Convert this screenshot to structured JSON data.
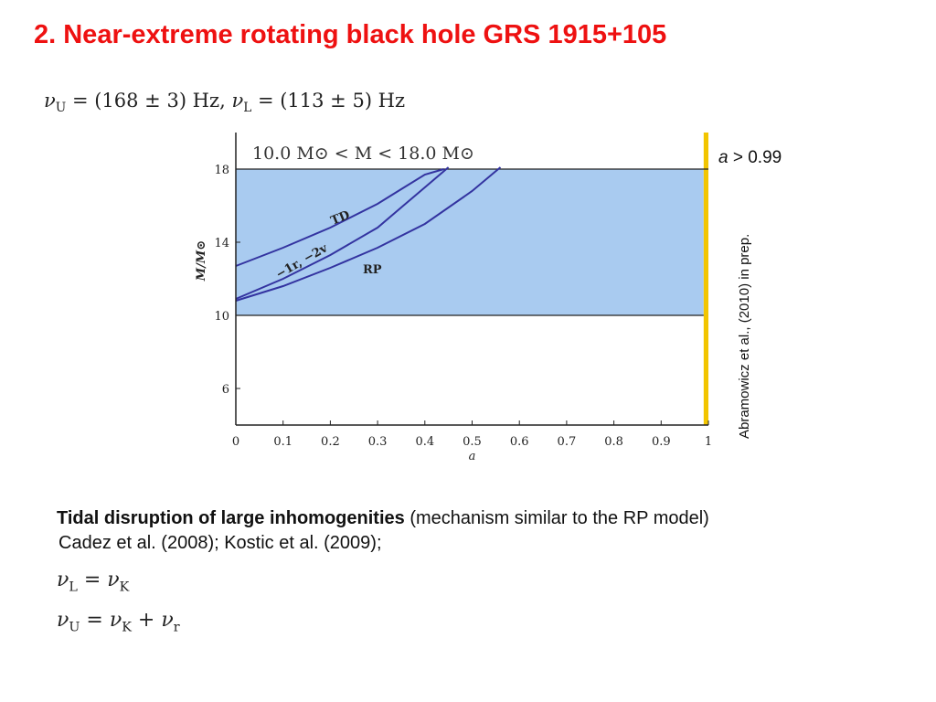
{
  "slide": {
    "title": "2. Near-extreme rotating black hole GRS 1915+105",
    "formula_top": {
      "nu_u_value": "(168 ± 3) Hz,",
      "nu_l_value": "(113 ± 5) Hz"
    },
    "condition": {
      "symbol": "a",
      "rest": " > 0.99"
    },
    "side_reference": "Abramowicz et al., (2010) in prep.",
    "text": {
      "bold": "Tidal disruption of large inhomogenities",
      "normal": " (mechanism similar to the RP model)",
      "refs": "Cadez et al. (2008);  Kostic et al. (2009);"
    },
    "formulas_bottom": {
      "l_rhs_sub": "K",
      "u_rhs_sub1": "K",
      "u_rhs_sub2": "r"
    }
  },
  "colors": {
    "title": "#ee1111",
    "band": "#a9cbf0",
    "yellow_strip": "#f2c500",
    "curves": "#3333a0"
  },
  "chart_data": {
    "type": "line",
    "xlabel": "a",
    "ylabel": "M/M⊙",
    "xlim": [
      0,
      1
    ],
    "ylim": [
      4,
      20
    ],
    "x_ticks": [
      "0",
      "0.1",
      "0.2",
      "0.3",
      "0.4",
      "0.5",
      "0.6",
      "0.7",
      "0.8",
      "0.9",
      "1"
    ],
    "y_ticks": [
      "6",
      "10",
      "14",
      "18"
    ],
    "grid": false,
    "band": {
      "label": "10.0 M⊙ < M < 18.0 M⊙",
      "ymin": 10,
      "ymax": 18
    },
    "highlight_x": [
      0.99,
      1.0
    ],
    "series": [
      {
        "name": "TD",
        "x": [
          0,
          0.1,
          0.2,
          0.3,
          0.35,
          0.4,
          0.44
        ],
        "y": [
          12.7,
          13.7,
          14.8,
          16.1,
          16.9,
          17.7,
          18.0
        ]
      },
      {
        "name": "−1r, −2v",
        "x": [
          0,
          0.1,
          0.2,
          0.3,
          0.35,
          0.4,
          0.45
        ],
        "y": [
          10.9,
          12.0,
          13.3,
          14.8,
          15.9,
          17.0,
          18.1
        ]
      },
      {
        "name": "RP",
        "x": [
          0,
          0.1,
          0.2,
          0.3,
          0.4,
          0.5,
          0.56
        ],
        "y": [
          10.8,
          11.6,
          12.6,
          13.7,
          15.0,
          16.8,
          18.1
        ]
      }
    ]
  }
}
